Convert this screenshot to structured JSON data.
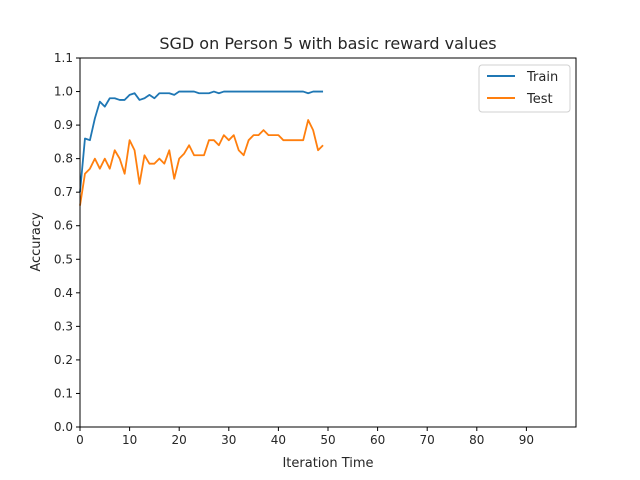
{
  "chart_data": {
    "type": "line",
    "title": "SGD on Person 5 with basic reward values",
    "xlabel": "Iteration Time",
    "ylabel": "Accuracy",
    "xlim": [
      0,
      100
    ],
    "ylim": [
      0,
      1.1
    ],
    "xticks": [
      0,
      10,
      20,
      30,
      40,
      50,
      60,
      70,
      80,
      90
    ],
    "yticks": [
      0.0,
      0.1,
      0.2,
      0.3,
      0.4,
      0.5,
      0.6,
      0.7,
      0.8,
      0.9,
      1.0,
      1.1
    ],
    "grid": false,
    "legend_position": "top-right",
    "series": [
      {
        "name": "Train",
        "color": "#1f77b4",
        "x": [
          0,
          1,
          2,
          3,
          4,
          5,
          6,
          7,
          8,
          9,
          10,
          11,
          12,
          13,
          14,
          15,
          16,
          17,
          18,
          19,
          20,
          21,
          22,
          23,
          24,
          25,
          26,
          27,
          28,
          29,
          30,
          31,
          32,
          33,
          34,
          35,
          36,
          37,
          38,
          39,
          40,
          41,
          42,
          43,
          44,
          45,
          46,
          47,
          48,
          49
        ],
        "y": [
          0.7,
          0.86,
          0.855,
          0.92,
          0.97,
          0.955,
          0.98,
          0.98,
          0.975,
          0.975,
          0.99,
          0.995,
          0.975,
          0.98,
          0.99,
          0.98,
          0.995,
          0.995,
          0.995,
          0.99,
          1.0,
          1.0,
          1.0,
          1.0,
          0.995,
          0.995,
          0.995,
          1.0,
          0.995,
          1.0,
          1.0,
          1.0,
          1.0,
          1.0,
          1.0,
          1.0,
          1.0,
          1.0,
          1.0,
          1.0,
          1.0,
          1.0,
          1.0,
          1.0,
          1.0,
          1.0,
          0.995,
          1.0,
          1.0,
          1.0
        ]
      },
      {
        "name": "Test",
        "color": "#ff7f0e",
        "x": [
          0,
          1,
          2,
          3,
          4,
          5,
          6,
          7,
          8,
          9,
          10,
          11,
          12,
          13,
          14,
          15,
          16,
          17,
          18,
          19,
          20,
          21,
          22,
          23,
          24,
          25,
          26,
          27,
          28,
          29,
          30,
          31,
          32,
          33,
          34,
          35,
          36,
          37,
          38,
          39,
          40,
          41,
          42,
          43,
          44,
          45,
          46,
          47,
          48,
          49
        ],
        "y": [
          0.66,
          0.755,
          0.77,
          0.8,
          0.77,
          0.8,
          0.77,
          0.825,
          0.8,
          0.755,
          0.855,
          0.825,
          0.725,
          0.81,
          0.785,
          0.785,
          0.8,
          0.785,
          0.825,
          0.74,
          0.8,
          0.815,
          0.84,
          0.81,
          0.81,
          0.81,
          0.855,
          0.855,
          0.84,
          0.87,
          0.855,
          0.87,
          0.825,
          0.81,
          0.855,
          0.87,
          0.87,
          0.885,
          0.87,
          0.87,
          0.87,
          0.855,
          0.855,
          0.855,
          0.855,
          0.855,
          0.915,
          0.885,
          0.825,
          0.84
        ]
      }
    ]
  }
}
